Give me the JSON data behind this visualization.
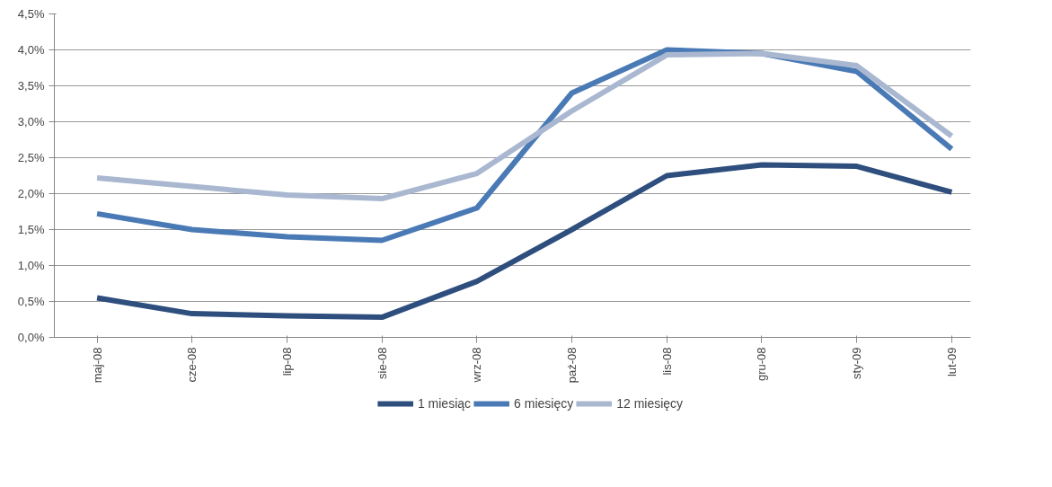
{
  "chart_data": {
    "type": "line",
    "categories": [
      "maj-08",
      "cze-08",
      "lip-08",
      "sie-08",
      "wrz-08",
      "paź-08",
      "lis-08",
      "gru-08",
      "sty-09",
      "lut-09"
    ],
    "series": [
      {
        "name": "1 miesiąc",
        "color": "#2e4e7e",
        "values": [
          0.55,
          0.33,
          0.3,
          0.28,
          0.78,
          1.5,
          2.25,
          2.4,
          2.38,
          2.02
        ]
      },
      {
        "name": "6 miesięcy",
        "color": "#4a7ab5",
        "values": [
          1.72,
          1.5,
          1.4,
          1.35,
          1.8,
          3.4,
          4.0,
          3.95,
          3.7,
          2.62
        ]
      },
      {
        "name": "12 miesięcy",
        "color": "#a9b8d0",
        "values": [
          2.22,
          2.1,
          1.98,
          1.93,
          2.28,
          3.15,
          3.93,
          3.95,
          3.78,
          2.8
        ]
      }
    ],
    "ylim": [
      0,
      4.5
    ],
    "yticks": [
      {
        "value": 0,
        "label": "0,0%"
      },
      {
        "value": 0.5,
        "label": "0,5%"
      },
      {
        "value": 1,
        "label": "1,0%"
      },
      {
        "value": 1.5,
        "label": "1,5%"
      },
      {
        "value": 2,
        "label": "2,0%"
      },
      {
        "value": 2.5,
        "label": "2,5%"
      },
      {
        "value": 3,
        "label": "3,0%"
      },
      {
        "value": 3.5,
        "label": "3,5%"
      },
      {
        "value": 4,
        "label": "4,0%"
      },
      {
        "value": 4.5,
        "label": "4,5%"
      }
    ],
    "grid": "y",
    "legend": "bottom",
    "marker": "none",
    "line_style": "solid"
  }
}
